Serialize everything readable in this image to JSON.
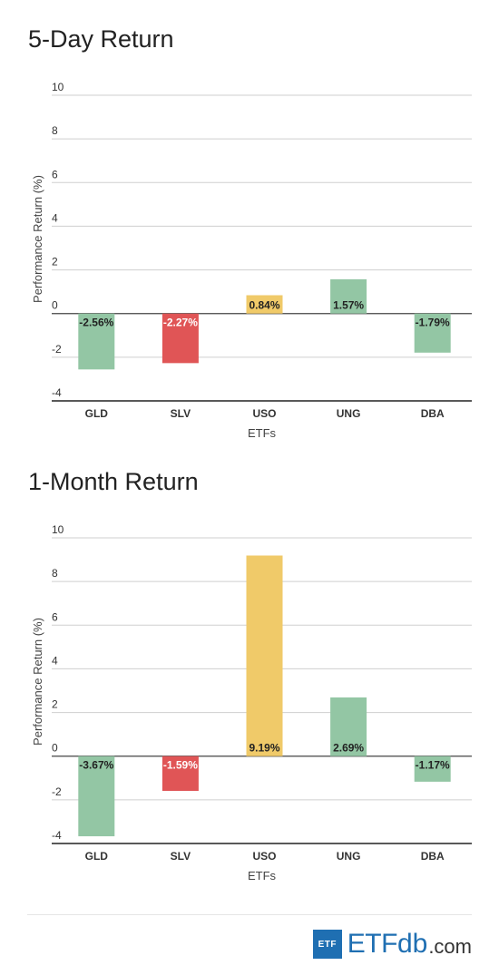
{
  "chart_data": [
    {
      "type": "bar",
      "title": "5-Day Return",
      "xlabel": "ETFs",
      "ylabel": "Performance Return (%)",
      "ylim": [
        -4,
        10
      ],
      "yticks": [
        -4,
        -2,
        0,
        2,
        4,
        6,
        8,
        10
      ],
      "categories": [
        "GLD",
        "SLV",
        "USO",
        "UNG",
        "DBA"
      ],
      "values": [
        -2.56,
        -2.27,
        0.84,
        1.57,
        -1.79
      ],
      "labels": [
        "-2.56%",
        "-2.27%",
        "0.84%",
        "1.57%",
        "-1.79%"
      ],
      "colors": [
        "#93c6a4",
        "#e05556",
        "#f0ca69",
        "#93c6a4",
        "#93c6a4"
      ],
      "label_colors": [
        "#222222",
        "#ffffff",
        "#222222",
        "#222222",
        "#222222"
      ],
      "grid": true
    },
    {
      "type": "bar",
      "title": "1-Month Return",
      "xlabel": "ETFs",
      "ylabel": "Performance Return (%)",
      "ylim": [
        -4,
        10
      ],
      "yticks": [
        -4,
        -2,
        0,
        2,
        4,
        6,
        8,
        10
      ],
      "categories": [
        "GLD",
        "SLV",
        "USO",
        "UNG",
        "DBA"
      ],
      "values": [
        -3.67,
        -1.59,
        9.19,
        2.69,
        -1.17
      ],
      "labels": [
        "-3.67%",
        "-1.59%",
        "9.19%",
        "2.69%",
        "-1.17%"
      ],
      "colors": [
        "#93c6a4",
        "#e05556",
        "#f0ca69",
        "#93c6a4",
        "#93c6a4"
      ],
      "label_colors": [
        "#222222",
        "#ffffff",
        "#222222",
        "#222222",
        "#222222"
      ],
      "grid": true
    }
  ],
  "logo": {
    "box_text": "ETF",
    "etf": "ETF",
    "db": "db",
    "com": ".com",
    "color": "#1f6fb2"
  }
}
